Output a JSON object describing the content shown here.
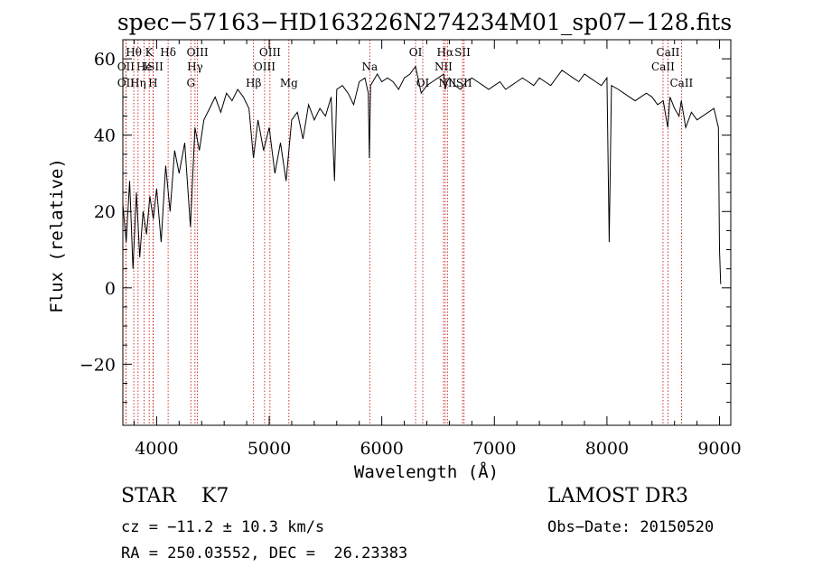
{
  "chart_data": {
    "type": "line",
    "title": "spec−57163−HD163226N274234M01_sp07−128.fits",
    "xlabel": "Wavelength (Å)",
    "ylabel": "Flux (relative)",
    "xlim": [
      3700,
      9100
    ],
    "ylim": [
      -36,
      65
    ],
    "xticks": [
      4000,
      5000,
      6000,
      7000,
      8000,
      9000
    ],
    "xtick_labels": [
      "4000",
      "5000",
      "6000",
      "7000",
      "8000",
      "9000"
    ],
    "yticks": [
      -20,
      0,
      20,
      40,
      60
    ],
    "ytick_labels": [
      "−20",
      "0",
      "20",
      "40",
      "60"
    ],
    "grid": false,
    "line_color": "#000000",
    "marker_color": "#c00000",
    "spectrum": {
      "wavelength": [
        3700,
        3730,
        3760,
        3790,
        3820,
        3850,
        3880,
        3910,
        3940,
        3970,
        4000,
        4040,
        4080,
        4120,
        4160,
        4200,
        4250,
        4300,
        4340,
        4380,
        4420,
        4470,
        4520,
        4570,
        4620,
        4670,
        4720,
        4770,
        4820,
        4860,
        4900,
        4950,
        5000,
        5050,
        5100,
        5150,
        5200,
        5250,
        5300,
        5350,
        5400,
        5450,
        5500,
        5550,
        5580,
        5600,
        5650,
        5700,
        5750,
        5800,
        5850,
        5880,
        5890,
        5900,
        5920,
        5960,
        6000,
        6050,
        6100,
        6150,
        6200,
        6250,
        6300,
        6350,
        6400,
        6450,
        6500,
        6550,
        6563,
        6580,
        6600,
        6650,
        6700,
        6750,
        6800,
        6850,
        6900,
        6950,
        7000,
        7050,
        7100,
        7150,
        7200,
        7250,
        7300,
        7350,
        7400,
        7450,
        7500,
        7550,
        7600,
        7650,
        7700,
        7750,
        7800,
        7850,
        7900,
        7950,
        8000,
        8020,
        8040,
        8100,
        8150,
        8200,
        8250,
        8300,
        8350,
        8400,
        8450,
        8500,
        8540,
        8560,
        8600,
        8640,
        8660,
        8700,
        8750,
        8800,
        8850,
        8900,
        8950,
        8990,
        9000,
        9010
      ],
      "flux": [
        22,
        12,
        28,
        5,
        25,
        8,
        20,
        14,
        24,
        18,
        26,
        12,
        32,
        20,
        36,
        30,
        38,
        16,
        42,
        36,
        44,
        47,
        50,
        46,
        51,
        49,
        52,
        50,
        47,
        34,
        44,
        36,
        42,
        30,
        38,
        28,
        44,
        46,
        39,
        48,
        44,
        47,
        45,
        50,
        28,
        52,
        53,
        51,
        48,
        54,
        55,
        51,
        34,
        53,
        54,
        56,
        54,
        55,
        54,
        52,
        55,
        56,
        58,
        51,
        53,
        54,
        55,
        56,
        52,
        54,
        55,
        53,
        52,
        54,
        55,
        54,
        53,
        52,
        53,
        54,
        52,
        53,
        54,
        55,
        54,
        53,
        55,
        54,
        53,
        55,
        57,
        56,
        55,
        54,
        56,
        55,
        54,
        53,
        55,
        12,
        53,
        52,
        51,
        50,
        49,
        50,
        51,
        50,
        48,
        49,
        42,
        50,
        47,
        45,
        49,
        42,
        46,
        44,
        45,
        46,
        47,
        42,
        10,
        1
      ]
    },
    "line_markers": [
      {
        "label": "Hθ",
        "x": 3797,
        "row": 0
      },
      {
        "label": "OII",
        "x": 3727,
        "row": 1
      },
      {
        "label": "OII",
        "x": 3727,
        "row": 2
      },
      {
        "label": "K",
        "x": 3934,
        "row": 0
      },
      {
        "label": "He",
        "x": 3889,
        "row": 1
      },
      {
        "label": "Hη",
        "x": 3835,
        "row": 2
      },
      {
        "label": "Hδ",
        "x": 4102,
        "row": 0
      },
      {
        "label": "ISII",
        "x": 3970,
        "row": 1
      },
      {
        "label": "H",
        "x": 3968,
        "row": 2
      },
      {
        "label": "OIII",
        "x": 4363,
        "row": 0
      },
      {
        "label": "Hγ",
        "x": 4341,
        "row": 1
      },
      {
        "label": "G",
        "x": 4304,
        "row": 2
      },
      {
        "label": "OIII",
        "x": 5007,
        "row": 0
      },
      {
        "label": "OIII",
        "x": 4959,
        "row": 1
      },
      {
        "label": "Hβ",
        "x": 4861,
        "row": 2
      },
      {
        "label": "Mg",
        "x": 5175,
        "row": 2
      },
      {
        "label": "Na",
        "x": 5893,
        "row": 1
      },
      {
        "label": "OI",
        "x": 6300,
        "row": 0
      },
      {
        "label": "OI",
        "x": 6364,
        "row": 2
      },
      {
        "label": "Hα",
        "x": 6563,
        "row": 0
      },
      {
        "label": "SII",
        "x": 6717,
        "row": 0
      },
      {
        "label": "NII",
        "x": 6548,
        "row": 1
      },
      {
        "label": "NII",
        "x": 6583,
        "row": 2
      },
      {
        "label": "SII",
        "x": 6731,
        "row": 2
      },
      {
        "label": "CaII",
        "x": 8542,
        "row": 0
      },
      {
        "label": "CaII",
        "x": 8498,
        "row": 1
      },
      {
        "label": "CaII",
        "x": 8662,
        "row": 2
      }
    ]
  },
  "info": {
    "class_line": "STAR    K7",
    "survey": "LAMOST DR3",
    "cz": "cz = −11.2 ± 10.3 km/s",
    "obs_date": "Obs−Date: 20150520",
    "radec": "RA = 250.03552, DEC =  26.23383"
  }
}
